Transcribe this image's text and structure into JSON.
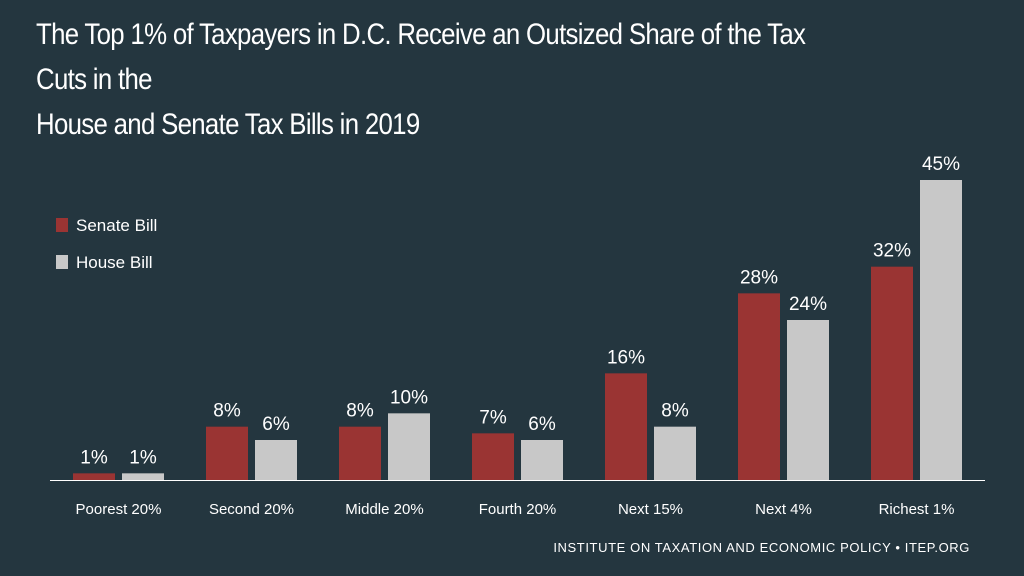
{
  "title_line1": "The Top 1% of Taxpayers in D.C. Receive an Outsized Share of the Tax Cuts in the",
  "title_line2": "House and Senate Tax Bills in 2019",
  "source": "INSTITUTE ON TAXATION AND ECONOMIC POLICY • ITEP.ORG",
  "colors": {
    "background": "#24363f",
    "senate": "#9a3433",
    "house": "#c8c8c8",
    "axis": "#ffffff",
    "text": "#ffffff"
  },
  "chart_data": {
    "type": "bar",
    "title": "The Top 1% of Taxpayers in D.C. Receive an Outsized Share of the Tax Cuts in the House and Senate Tax Bills in 2019",
    "xlabel": "",
    "ylabel": "",
    "ylim": [
      0,
      45
    ],
    "grid": false,
    "legend_position": "top-left",
    "categories": [
      "Poorest 20%",
      "Second 20%",
      "Middle 20%",
      "Fourth 20%",
      "Next 15%",
      "Next 4%",
      "Richest 1%"
    ],
    "series": [
      {
        "name": "Senate Bill",
        "values": [
          1,
          8,
          8,
          7,
          16,
          28,
          32
        ],
        "labels": [
          "1%",
          "8%",
          "8%",
          "7%",
          "16%",
          "28%",
          "32%"
        ]
      },
      {
        "name": "House Bill",
        "values": [
          1,
          6,
          10,
          6,
          8,
          24,
          45
        ],
        "labels": [
          "1%",
          "6%",
          "10%",
          "6%",
          "8%",
          "24%",
          "45%"
        ]
      }
    ]
  }
}
